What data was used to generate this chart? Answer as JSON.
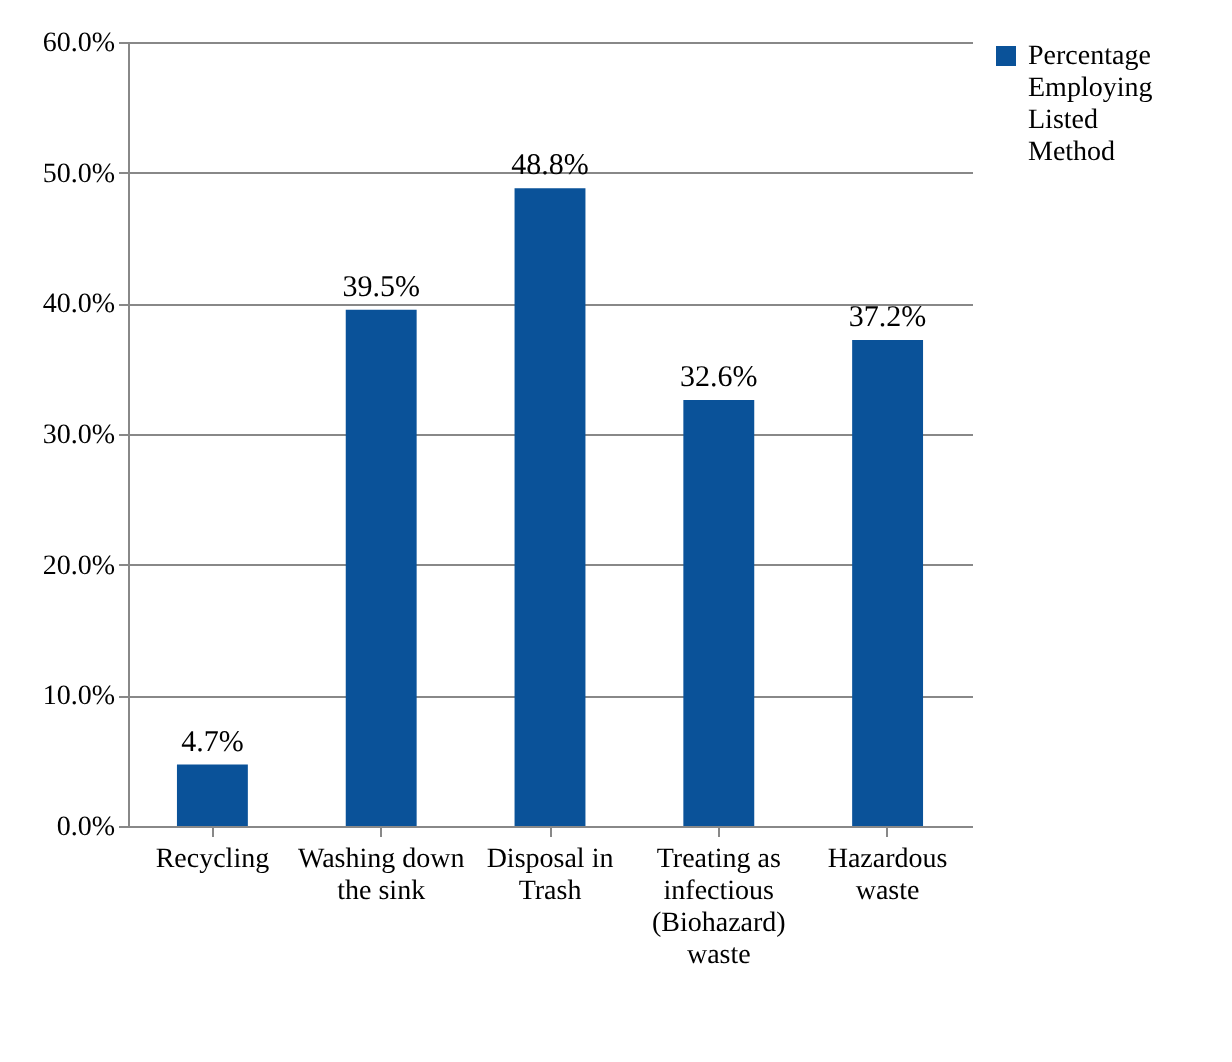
{
  "chart_data": {
    "type": "bar",
    "categories": [
      "Recycling",
      "Washing down the sink",
      "Disposal in Trash",
      "Treating as infectious (Biohazard) waste",
      "Hazardous waste"
    ],
    "series": [
      {
        "name": "Percentage Employing Listed Method",
        "color": "#0a5299",
        "values": [
          4.7,
          39.5,
          48.8,
          32.6,
          37.2
        ],
        "value_labels": [
          "4.7%",
          "39.5%",
          "48.8%",
          "32.6%",
          "37.2%"
        ]
      }
    ],
    "ylim": [
      0,
      60
    ],
    "yticks": [
      {
        "value": 0,
        "label": "0.0%"
      },
      {
        "value": 10,
        "label": "10.0%"
      },
      {
        "value": 20,
        "label": "20.0%"
      },
      {
        "value": 30,
        "label": "30.0%"
      },
      {
        "value": 40,
        "label": "40.0%"
      },
      {
        "value": 50,
        "label": "50.0%"
      },
      {
        "value": 60,
        "label": "60.0%"
      }
    ],
    "grid": "y",
    "legend": "right"
  }
}
